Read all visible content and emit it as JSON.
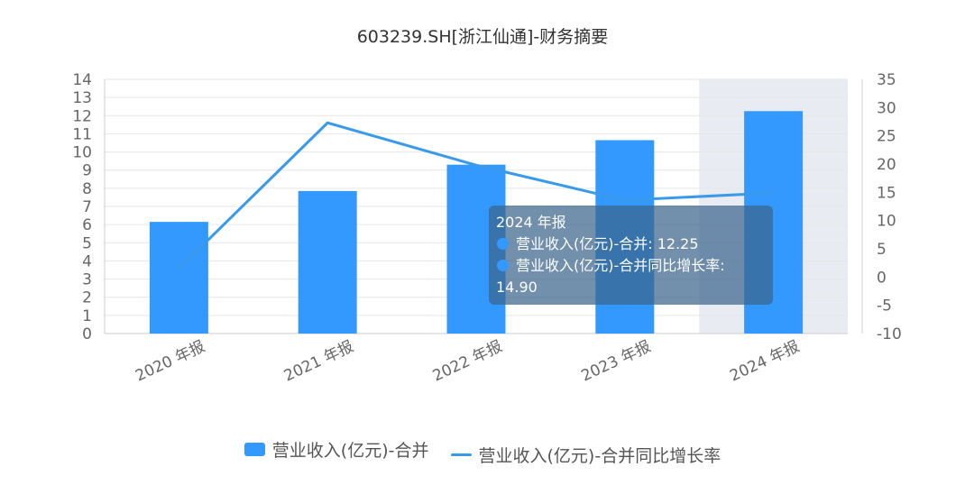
{
  "chart_data": {
    "type": "bar",
    "title": "603239.SH[浙江仙通]-财务摘要",
    "categories": [
      "2020 年报",
      "2021 年报",
      "2022 年报",
      "2023 年报",
      "2024 年报"
    ],
    "series": [
      {
        "name": "营业收入(亿元)-合并",
        "type": "bar",
        "axis": "left",
        "values": [
          6.15,
          7.85,
          9.3,
          10.65,
          12.25
        ]
      },
      {
        "name": "营业收入(亿元)-合并同比增长率",
        "type": "line",
        "axis": "right",
        "values": [
          1.5,
          27.3,
          19.8,
          13.6,
          14.9
        ]
      }
    ],
    "y_left": {
      "min": 0,
      "max": 14,
      "ticks": [
        "0",
        "1",
        "2",
        "3",
        "4",
        "5",
        "6",
        "7",
        "8",
        "9",
        "10",
        "11",
        "12",
        "13",
        "14"
      ]
    },
    "y_right": {
      "min": -10,
      "max": 35,
      "ticks": [
        "-10",
        "-5",
        "0",
        "5",
        "10",
        "15",
        "20",
        "25",
        "30",
        "35"
      ]
    },
    "highlighted_category": "2024 年报",
    "tooltip": {
      "title": "2024 年报",
      "rows": [
        {
          "label": "营业收入(亿元)-合并: 12.25"
        },
        {
          "label": "营业收入(亿元)-合并同比增长率:"
        },
        {
          "label": "14.90"
        }
      ]
    },
    "grid": true,
    "legend": "bottom-center",
    "colors": {
      "bar": "#3399FF",
      "line": "#3A9AEA",
      "highlight": "#E8ECF2",
      "tooltip_dot": "#3399FF"
    }
  }
}
